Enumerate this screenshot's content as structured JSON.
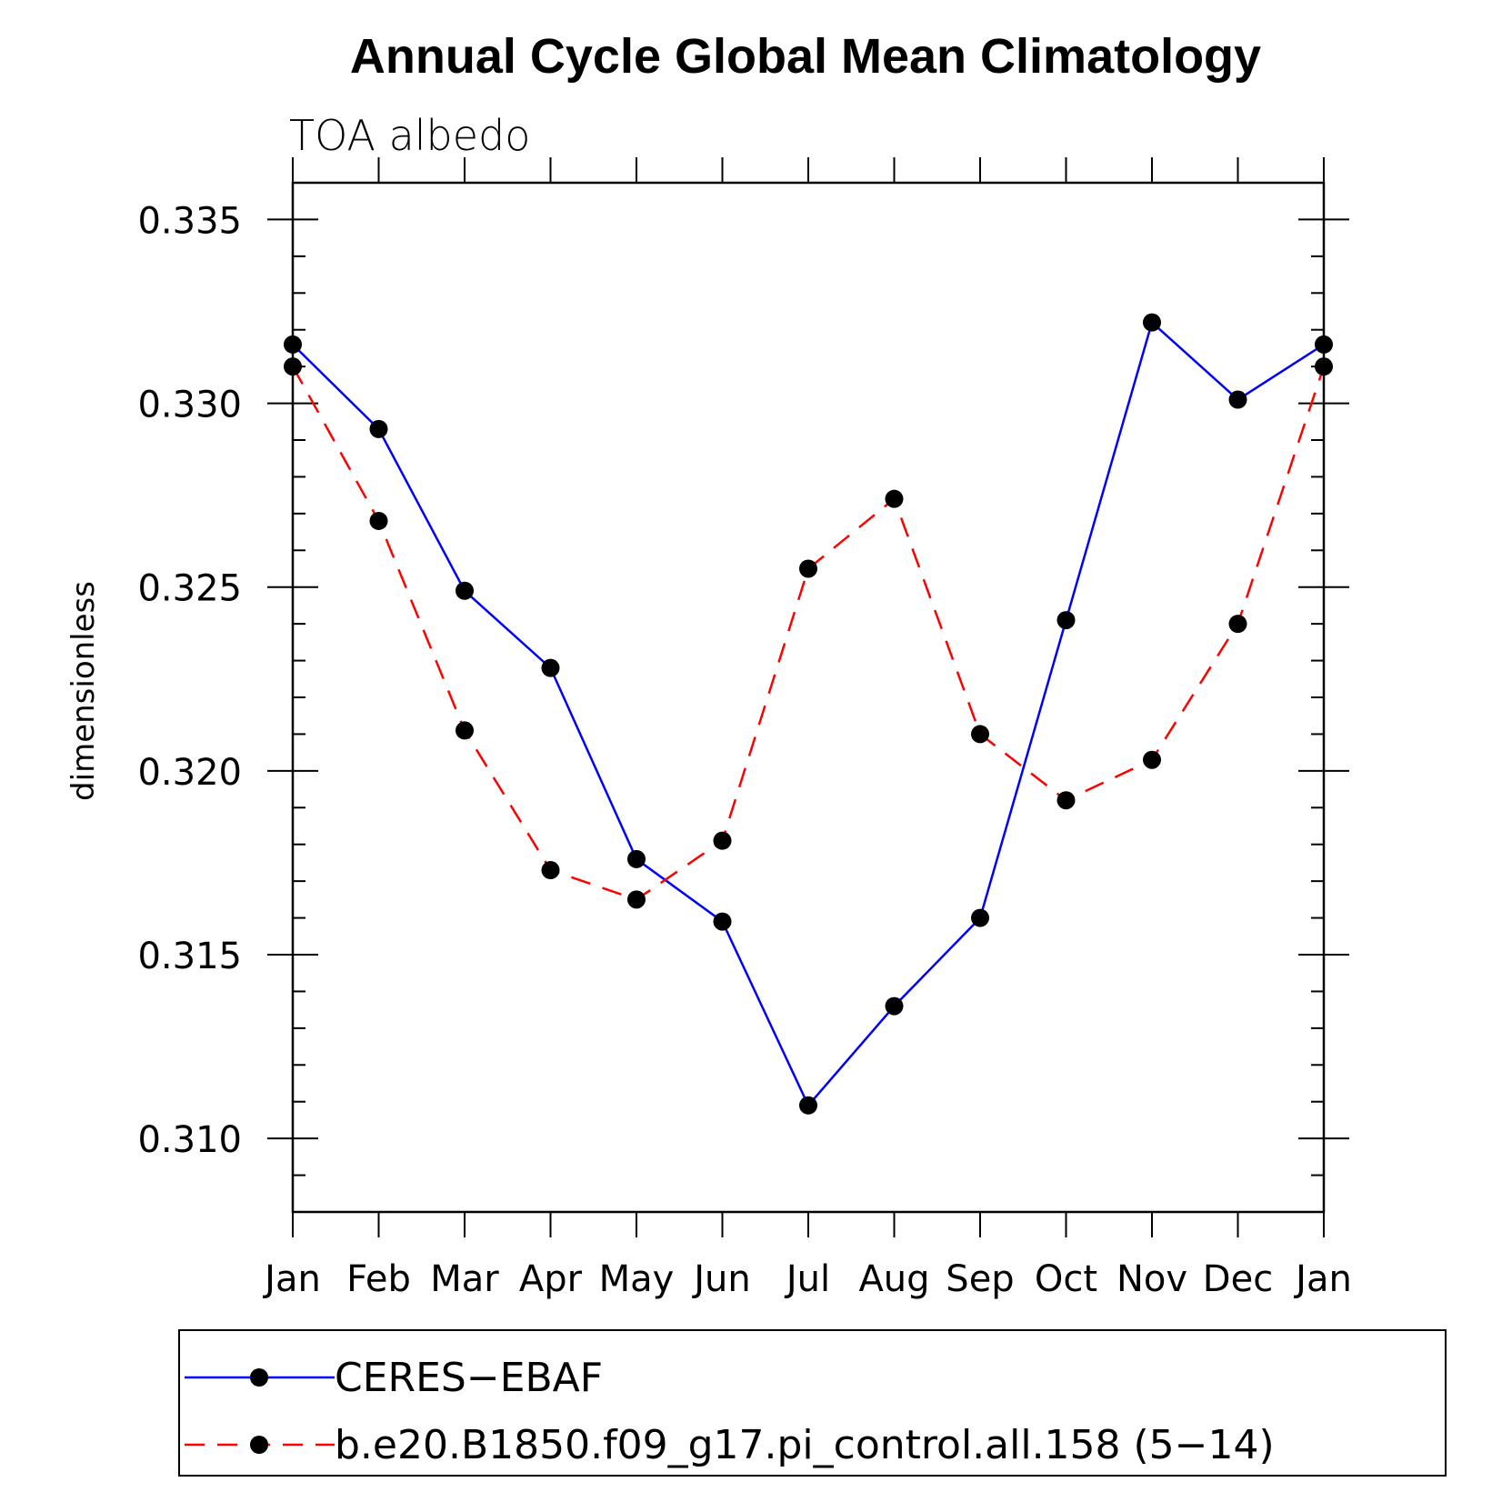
{
  "chart_data": {
    "type": "line",
    "title": "Annual Cycle Global Mean Climatology",
    "subtitle": "TOA albedo",
    "xlabel": "",
    "ylabel": "dimensionless",
    "categories": [
      "Jan",
      "Feb",
      "Mar",
      "Apr",
      "May",
      "Jun",
      "Jul",
      "Aug",
      "Sep",
      "Oct",
      "Nov",
      "Dec",
      "Jan"
    ],
    "yticks": [
      "0.310",
      "0.315",
      "0.320",
      "0.325",
      "0.330",
      "0.335"
    ],
    "ylim": [
      0.308,
      0.336
    ],
    "series": [
      {
        "name": "CERES−EBAF",
        "color": "#0000ff",
        "dash": "solid",
        "values": [
          0.3316,
          0.3293,
          0.3249,
          0.3228,
          0.3176,
          0.3159,
          0.3109,
          0.3136,
          0.316,
          0.3241,
          0.3322,
          0.3301,
          0.3316
        ]
      },
      {
        "name": "b.e20.B1850.f09_g17.pi_control.all.158 (5−14)",
        "color": "#ff0000",
        "dash": "dashed",
        "values": [
          0.331,
          0.3268,
          0.3211,
          0.3173,
          0.3165,
          0.3181,
          0.3255,
          0.3274,
          0.321,
          0.3192,
          0.3203,
          0.324,
          0.331
        ]
      }
    ]
  }
}
